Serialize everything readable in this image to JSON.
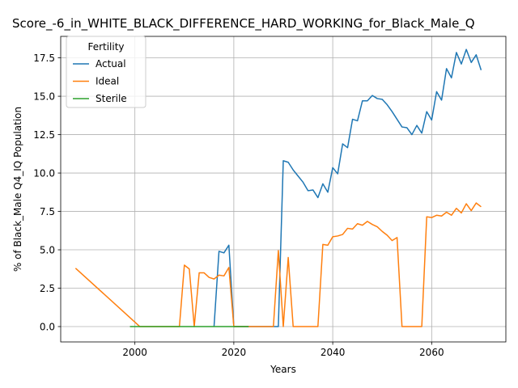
{
  "chart_data": {
    "type": "line",
    "title": "Score_-6_in_WHITE_BLACK_DIFFERENCE_HARD_WORKING_for_Black_Male_Q",
    "xlabel": "Years",
    "ylabel": "% of Black_Male Q4_IQ Population",
    "xlim": [
      1985,
      2075
    ],
    "ylim": [
      -1.0,
      18.9
    ],
    "grid": true,
    "legend_position": "top-left",
    "legend_title": "Fertility",
    "x_ticks": [
      2000,
      2020,
      2040,
      2060
    ],
    "x_tick_labels": [
      "2000",
      "2020",
      "2040",
      "2060"
    ],
    "y_ticks": [
      0.0,
      2.5,
      5.0,
      7.5,
      10.0,
      12.5,
      15.0,
      17.5
    ],
    "y_tick_labels": [
      "0.0",
      "2.5",
      "5.0",
      "7.5",
      "10.0",
      "12.5",
      "15.0",
      "17.5"
    ],
    "series": [
      {
        "name": "Actual",
        "color": "#1f77b4",
        "x": [
          2016,
          2017,
          2018,
          2019,
          2020,
          2029,
          2030,
          2031,
          2032,
          2033,
          2034,
          2035,
          2036,
          2037,
          2038,
          2039,
          2040,
          2041,
          2042,
          2043,
          2044,
          2045,
          2046,
          2047,
          2048,
          2049,
          2050,
          2051,
          2052,
          2053,
          2054,
          2055,
          2056,
          2057,
          2058,
          2059,
          2060,
          2061,
          2062,
          2063,
          2064,
          2065,
          2066,
          2067,
          2068,
          2069,
          2070
        ],
        "y": [
          0.0,
          4.9,
          4.8,
          5.3,
          0.0,
          0.0,
          10.8,
          10.7,
          10.2,
          9.8,
          9.4,
          8.85,
          8.9,
          8.4,
          9.3,
          8.75,
          10.35,
          9.95,
          11.9,
          11.65,
          13.5,
          13.4,
          14.7,
          14.7,
          15.05,
          14.85,
          14.8,
          14.45,
          14.0,
          13.5,
          13.0,
          12.95,
          12.5,
          13.1,
          12.6,
          14.0,
          13.45,
          15.3,
          14.75,
          16.8,
          16.2,
          17.85,
          17.1,
          18.05,
          17.2,
          17.7,
          16.7
        ]
      },
      {
        "name": "Ideal",
        "color": "#ff7f0e",
        "x": [
          1988,
          2001,
          2009,
          2010,
          2011,
          2012,
          2013,
          2014,
          2015,
          2016,
          2017,
          2018,
          2019,
          2020,
          2028,
          2029,
          2030,
          2031,
          2032,
          2036,
          2037,
          2038,
          2039,
          2040,
          2041,
          2042,
          2043,
          2044,
          2045,
          2046,
          2047,
          2048,
          2049,
          2050,
          2051,
          2052,
          2053,
          2054,
          2055,
          2056,
          2057,
          2058,
          2059,
          2060,
          2061,
          2062,
          2063,
          2064,
          2065,
          2066,
          2067,
          2068,
          2069,
          2070
        ],
        "y": [
          3.8,
          0.0,
          0.0,
          4.0,
          3.75,
          0.0,
          3.5,
          3.5,
          3.2,
          3.1,
          3.35,
          3.3,
          3.85,
          0.0,
          0.0,
          4.95,
          0.0,
          4.5,
          0.0,
          0.0,
          0.0,
          5.35,
          5.3,
          5.85,
          5.9,
          6.0,
          6.4,
          6.35,
          6.7,
          6.6,
          6.85,
          6.65,
          6.5,
          6.2,
          5.95,
          5.6,
          5.8,
          0.0,
          0.0,
          0.0,
          0.0,
          0.0,
          7.15,
          7.1,
          7.25,
          7.2,
          7.45,
          7.25,
          7.7,
          7.4,
          8.0,
          7.55,
          8.05,
          7.8
        ]
      },
      {
        "name": "Sterile",
        "color": "#2ca02c",
        "x": [
          1999,
          2001,
          2005,
          2010,
          2015,
          2020,
          2023
        ],
        "y": [
          0.0,
          0.0,
          0.0,
          0.0,
          0.0,
          0.0,
          0.0
        ]
      }
    ]
  }
}
